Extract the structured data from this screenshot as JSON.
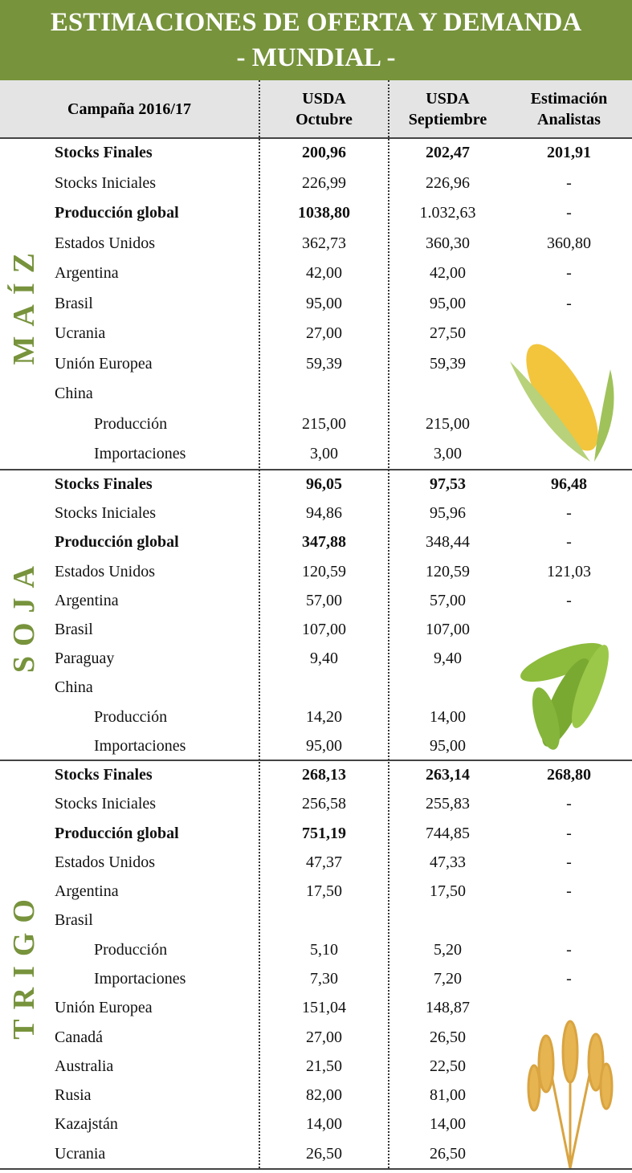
{
  "header": {
    "title": [
      "ESTIMACIONES DE OFERTA Y DEMANDA",
      "- MUNDIAL -"
    ]
  },
  "table": {
    "columns": [
      [
        "Campaña 2016/17"
      ],
      [
        "USDA",
        "Octubre"
      ],
      [
        "USDA",
        "Septiembre"
      ],
      [
        "Estimación",
        "Analistas"
      ]
    ],
    "sections": [
      {
        "name": "MAÍZ",
        "rows": [
          {
            "label": "Stocks Finales",
            "values": [
              "200,96",
              "202,47",
              "201,91"
            ],
            "bold": [
              0,
              1,
              2,
              3
            ]
          },
          {
            "label": "Stocks Iniciales",
            "values": [
              "226,99",
              "226,96",
              "-"
            ]
          },
          {
            "label": "Producción global",
            "values": [
              "1038,80",
              "1.032,63",
              "-"
            ],
            "bold": [
              0,
              1
            ]
          },
          {
            "label": "Estados Unidos",
            "values": [
              "362,73",
              "360,30",
              "360,80"
            ]
          },
          {
            "label": "Argentina",
            "values": [
              "42,00",
              "42,00",
              "-"
            ]
          },
          {
            "label": "Brasil",
            "values": [
              "95,00",
              "95,00",
              "-"
            ]
          },
          {
            "label": "Ucrania",
            "values": [
              "27,00",
              "27,50",
              null
            ]
          },
          {
            "label": "Unión Europea",
            "values": [
              "59,39",
              "59,39",
              null
            ]
          },
          {
            "label": "China",
            "values": [
              null,
              null,
              null
            ]
          },
          {
            "label": "Producción",
            "values": [
              "215,00",
              "215,00",
              null
            ],
            "indent": true
          },
          {
            "label": "Importaciones",
            "values": [
              "3,00",
              "3,00",
              null
            ],
            "indent": true
          }
        ]
      },
      {
        "name": "SOJA",
        "rows": [
          {
            "label": "Stocks Finales",
            "values": [
              "96,05",
              "97,53",
              "96,48"
            ],
            "bold": [
              0,
              1,
              2,
              3
            ]
          },
          {
            "label": "Stocks Iniciales",
            "values": [
              "94,86",
              "95,96",
              "-"
            ]
          },
          {
            "label": "Producción global",
            "values": [
              "347,88",
              "348,44",
              "-"
            ],
            "bold": [
              0,
              1
            ]
          },
          {
            "label": "Estados Unidos",
            "values": [
              "120,59",
              "120,59",
              "121,03"
            ]
          },
          {
            "label": "Argentina",
            "values": [
              "57,00",
              "57,00",
              "-"
            ]
          },
          {
            "label": "Brasil",
            "values": [
              "107,00",
              "107,00",
              null
            ]
          },
          {
            "label": "Paraguay",
            "values": [
              "9,40",
              "9,40",
              null
            ]
          },
          {
            "label": "China",
            "values": [
              null,
              null,
              null
            ]
          },
          {
            "label": "Producción",
            "values": [
              "14,20",
              "14,00",
              null
            ],
            "indent": true
          },
          {
            "label": "Importaciones",
            "values": [
              "95,00",
              "95,00",
              null
            ],
            "indent": true
          }
        ]
      },
      {
        "name": "TRIGO",
        "rows": [
          {
            "label": "Stocks Finales",
            "values": [
              "268,13",
              "263,14",
              "268,80"
            ],
            "bold": [
              0,
              1,
              2,
              3
            ]
          },
          {
            "label": "Stocks Iniciales",
            "values": [
              "256,58",
              "255,83",
              "-"
            ]
          },
          {
            "label": "Producción global",
            "values": [
              "751,19",
              "744,85",
              "-"
            ],
            "bold": [
              0,
              1
            ]
          },
          {
            "label": "Estados Unidos",
            "values": [
              "47,37",
              "47,33",
              "-"
            ]
          },
          {
            "label": "Argentina",
            "values": [
              "17,50",
              "17,50",
              "-"
            ]
          },
          {
            "label": "Brasil",
            "values": [
              null,
              null,
              null
            ]
          },
          {
            "label": "Producción",
            "values": [
              "5,10",
              "5,20",
              "-"
            ],
            "indent": true
          },
          {
            "label": "Importaciones",
            "values": [
              "7,30",
              "7,20",
              "-"
            ],
            "indent": true
          },
          {
            "label": "Unión Europea",
            "values": [
              "151,04",
              "148,87",
              null
            ]
          },
          {
            "label": "Canadá",
            "values": [
              "27,00",
              "26,50",
              null
            ]
          },
          {
            "label": "Australia",
            "values": [
              "21,50",
              "22,50",
              null
            ]
          },
          {
            "label": "Rusia",
            "values": [
              "82,00",
              "81,00",
              null
            ]
          },
          {
            "label": "Kazajstán",
            "values": [
              "14,00",
              "14,00",
              null
            ]
          },
          {
            "label": "Ucrania",
            "values": [
              "26,50",
              "26,50",
              null
            ]
          }
        ]
      }
    ]
  }
}
